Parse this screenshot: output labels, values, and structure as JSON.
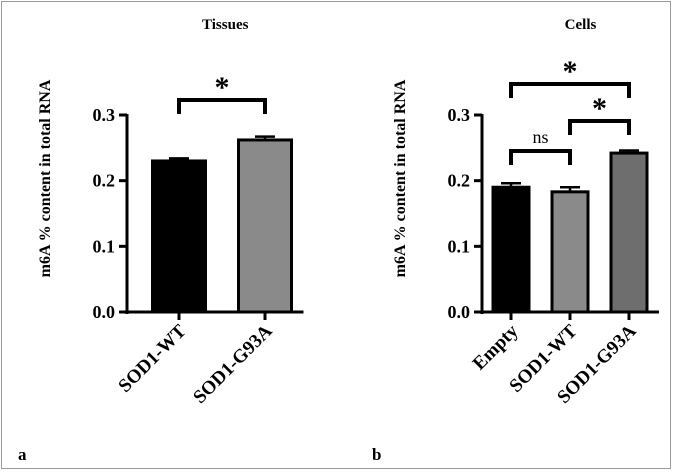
{
  "panel_labels": [
    "a",
    "b"
  ],
  "chart_data": [
    {
      "type": "bar",
      "panel": "a",
      "title": "Tissues",
      "ylabel": "m6A % content in total RNA",
      "xlabel": "",
      "ylim": [
        0,
        0.3
      ],
      "yticks": [
        "0.0",
        "0.1",
        "0.2",
        "0.3"
      ],
      "categories": [
        "SOD1-WT",
        "SOD1-G93A"
      ],
      "values": [
        0.23,
        0.262
      ],
      "errors": [
        0.004,
        0.005
      ],
      "bar_colors": [
        "#000000",
        "#8a8a8a"
      ],
      "significance": [
        {
          "from": 0,
          "to": 1,
          "label": "*"
        }
      ]
    },
    {
      "type": "bar",
      "panel": "b",
      "title": "Cells",
      "ylabel": "m6A % content in total RNA",
      "xlabel": "",
      "ylim": [
        0,
        0.3
      ],
      "yticks": [
        "0.0",
        "0.1",
        "0.2",
        "0.3"
      ],
      "categories": [
        "Empty",
        "SOD1-WT",
        "SOD1-G93A"
      ],
      "values": [
        0.19,
        0.183,
        0.242
      ],
      "errors": [
        0.006,
        0.007,
        0.004
      ],
      "bar_colors": [
        "#000000",
        "#8a8a8a",
        "#6e6e6e"
      ],
      "significance": [
        {
          "from": 0,
          "to": 1,
          "label": "ns"
        },
        {
          "from": 1,
          "to": 2,
          "label": "*"
        },
        {
          "from": 0,
          "to": 2,
          "label": "*"
        }
      ]
    }
  ]
}
